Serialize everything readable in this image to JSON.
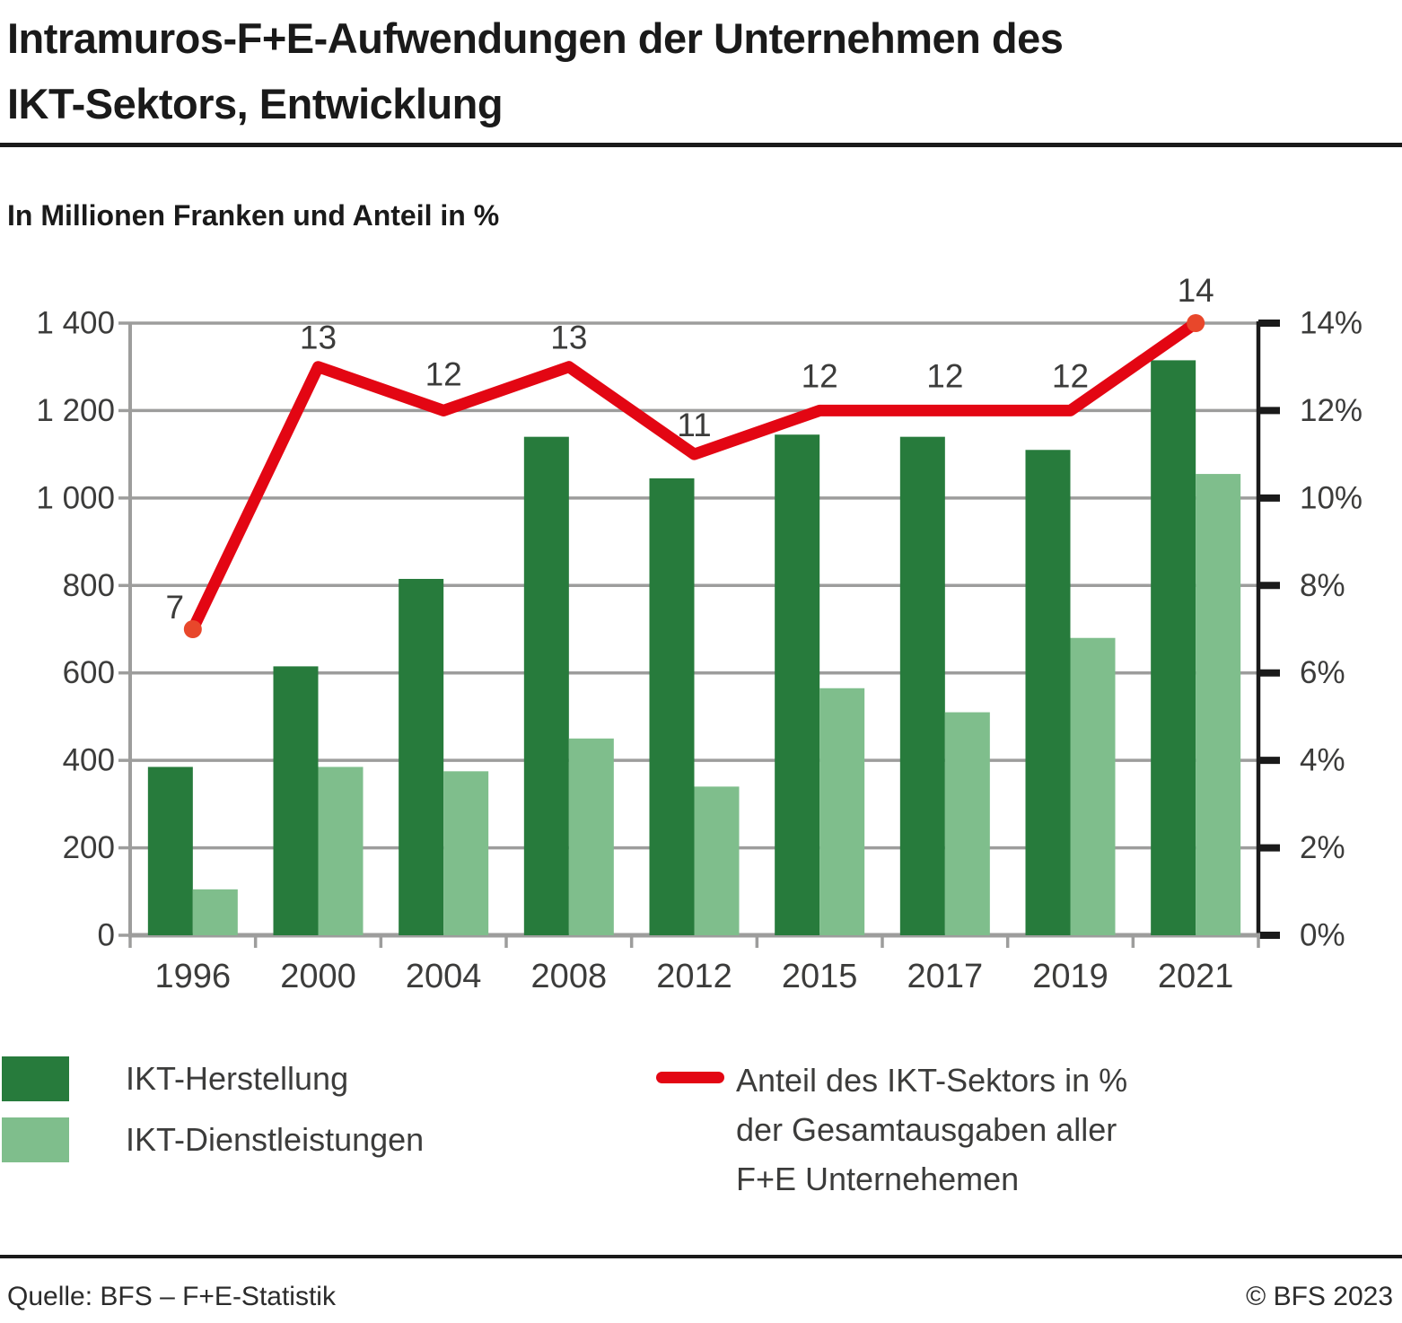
{
  "title": {
    "line1": "Intramuros-F+E-Aufwendungen der Unternehmen des",
    "line2": "IKT-Sektors, Entwicklung"
  },
  "subtitle": "In Millionen Franken und Anteil in %",
  "legend": {
    "bars": [
      {
        "label": "IKT-Herstellung",
        "color": "#277B3C"
      },
      {
        "label": "IKT-Dienstleistungen",
        "color": "#7FBE8C"
      }
    ],
    "line": {
      "color": "#E30613",
      "label_lines": [
        "Anteil des IKT-Sektors in %",
        "der Gesamtausgaben aller",
        "F+E Unternehemen"
      ]
    }
  },
  "footer": {
    "source": "Quelle: BFS – F+E-Statistik",
    "copyright": "© BFS 2023"
  },
  "colors": {
    "dark_green": "#277B3C",
    "light_green": "#7FBE8C",
    "red": "#E30613",
    "endpoint_dot": "#E8472B",
    "grid": "#9D9D9C",
    "right_axis": "#1A1A1A",
    "label_text": "#3C3C3B"
  },
  "chart_data": {
    "type": "bar",
    "title": "Intramuros-F+E-Aufwendungen der Unternehmen des IKT-Sektors, Entwicklung",
    "subtitle": "In Millionen Franken und Anteil in %",
    "categories": [
      "1996",
      "2000",
      "2004",
      "2008",
      "2012",
      "2015",
      "2017",
      "2019",
      "2021"
    ],
    "series": [
      {
        "name": "IKT-Herstellung",
        "type": "bar",
        "axis": "left",
        "color": "#277B3C",
        "values": [
          385,
          615,
          815,
          1140,
          1045,
          1145,
          1140,
          1110,
          1315
        ]
      },
      {
        "name": "IKT-Dienstleistungen",
        "type": "bar",
        "axis": "left",
        "color": "#7FBE8C",
        "values": [
          105,
          385,
          375,
          450,
          340,
          565,
          510,
          680,
          1055
        ]
      },
      {
        "name": "Anteil des IKT-Sektors in % der Gesamtausgaben aller F+E Unternehemen",
        "type": "line",
        "axis": "right",
        "color": "#E30613",
        "values": [
          7,
          13,
          12,
          13,
          11,
          12,
          12,
          12,
          14
        ],
        "point_labels": [
          "7",
          "13",
          "12",
          "13",
          "11",
          "12",
          "12",
          "12",
          "14"
        ]
      }
    ],
    "left_axis": {
      "min": 0,
      "max": 1400,
      "step": 200,
      "tick_labels": [
        "0",
        "200",
        "400",
        "600",
        "800",
        "1 000",
        "1 200",
        "1 400"
      ]
    },
    "right_axis": {
      "min": 0,
      "max": 14,
      "step": 2,
      "tick_labels": [
        "0%",
        "2%",
        "4%",
        "6%",
        "8%",
        "10%",
        "12%",
        "14%"
      ]
    },
    "grid": true,
    "legend_position": "bottom"
  }
}
